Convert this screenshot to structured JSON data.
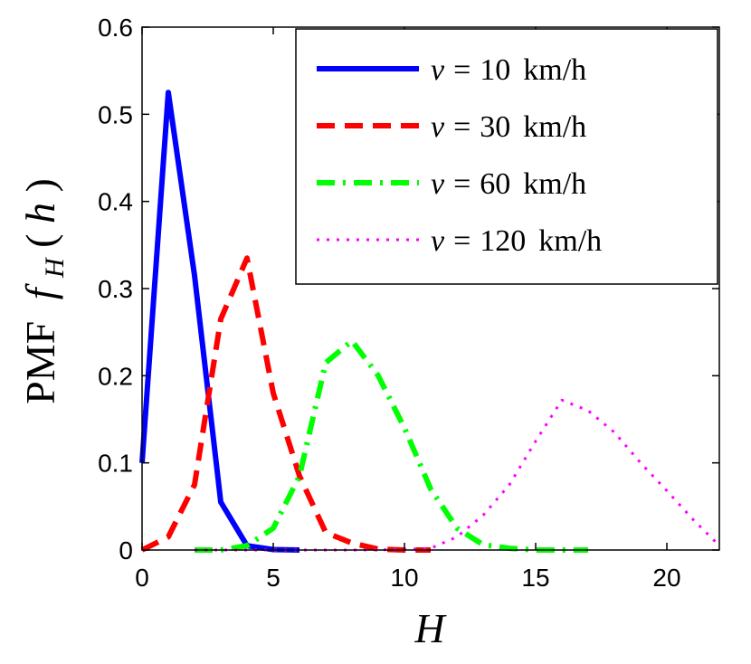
{
  "chart_data": {
    "type": "line",
    "xlabel": "H",
    "ylabel": {
      "prefix": "PMF",
      "func": "f",
      "sub": "H",
      "arg": "h"
    },
    "xlim": [
      0,
      22
    ],
    "ylim": [
      0,
      0.6
    ],
    "xticks": [
      0,
      5,
      10,
      15,
      20
    ],
    "yticks": [
      0,
      0.1,
      0.2,
      0.3,
      0.4,
      0.5,
      0.6
    ],
    "xtick_labels": [
      "0",
      "5",
      "10",
      "15",
      "20"
    ],
    "ytick_labels": [
      "0",
      "0.1",
      "0.2",
      "0.3",
      "0.4",
      "0.5",
      "0.6"
    ],
    "legend_position": "top-right",
    "series": [
      {
        "name": "v = 10 km/h",
        "legend": {
          "var": "v",
          "op": "=",
          "value": "10",
          "unit": "km/h"
        },
        "color": "#0000ff",
        "style": "solid",
        "x": [
          0,
          1,
          2,
          3,
          4,
          5,
          6
        ],
        "y": [
          0.1,
          0.525,
          0.315,
          0.055,
          0.005,
          0.0005,
          0.0
        ]
      },
      {
        "name": "v = 30 km/h",
        "legend": {
          "var": "v",
          "op": "=",
          "value": "30",
          "unit": "km/h"
        },
        "color": "#ff0000",
        "style": "dashed",
        "x": [
          0,
          1,
          2,
          3,
          4,
          5,
          6,
          7,
          8,
          9,
          10,
          11
        ],
        "y": [
          0.0,
          0.015,
          0.075,
          0.265,
          0.335,
          0.18,
          0.085,
          0.02,
          0.008,
          0.001,
          0.0,
          0.0
        ]
      },
      {
        "name": "v = 60 km/h",
        "legend": {
          "var": "v",
          "op": "=",
          "value": "60",
          "unit": "km/h"
        },
        "color": "#00ff00",
        "style": "dashdot",
        "x": [
          2,
          3,
          4,
          5,
          6,
          7,
          8,
          9,
          10,
          11,
          12,
          13,
          14,
          15,
          16,
          17
        ],
        "y": [
          0.0,
          0.0,
          0.005,
          0.025,
          0.085,
          0.215,
          0.24,
          0.2,
          0.14,
          0.07,
          0.025,
          0.006,
          0.002,
          0.0,
          0.0,
          0.0
        ]
      },
      {
        "name": "v = 120 km/h",
        "legend": {
          "var": "v",
          "op": "=",
          "value": "120",
          "unit": "km/h"
        },
        "color": "#ff00ff",
        "style": "dotted",
        "x": [
          2,
          4,
          6,
          8,
          10,
          11,
          12,
          13,
          14,
          15,
          16,
          17,
          18,
          19,
          20,
          21,
          22
        ],
        "y": [
          0.0,
          0.0,
          0.0,
          0.0,
          0.0005,
          0.002,
          0.015,
          0.04,
          0.075,
          0.125,
          0.172,
          0.16,
          0.135,
          0.1,
          0.068,
          0.035,
          0.005
        ]
      }
    ]
  }
}
